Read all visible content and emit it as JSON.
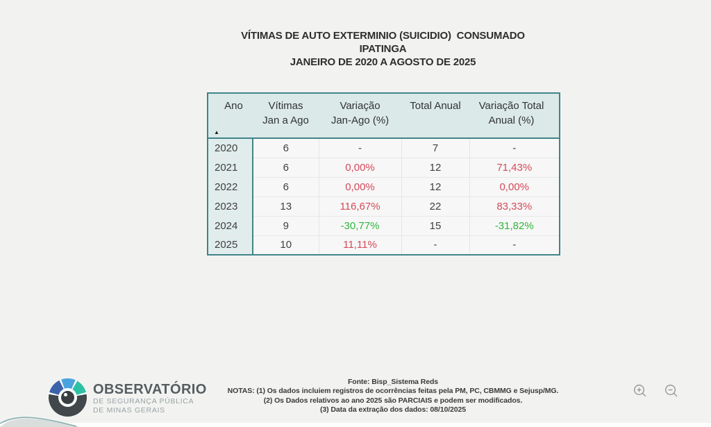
{
  "title": {
    "line1": "VÍTIMAS DE AUTO EXTERMINIO (SUICIDIO)  CONSUMADO",
    "line2": "IPATINGA",
    "line3": "JANEIRO DE 2020 A AGOSTO DE 2025"
  },
  "table": {
    "sort_indicator": "▲",
    "columns": [
      {
        "id": "ano",
        "line1": "Ano",
        "line2": ""
      },
      {
        "id": "vitimas-jan-ago",
        "line1": "Vítimas",
        "line2": "Jan a Ago"
      },
      {
        "id": "variacao-jan-ago",
        "line1": "Variação",
        "line2": "Jan-Ago (%)"
      },
      {
        "id": "total-anual",
        "line1": "Total Anual",
        "line2": ""
      },
      {
        "id": "variacao-total-anual",
        "line1": "Variação Total",
        "line2": "Anual (%)"
      }
    ],
    "rows": [
      {
        "cells": [
          {
            "text": "2020"
          },
          {
            "text": "6"
          },
          {
            "text": "-"
          },
          {
            "text": "7"
          },
          {
            "text": "-"
          }
        ]
      },
      {
        "cells": [
          {
            "text": "2021"
          },
          {
            "text": "6"
          },
          {
            "text": "0,00%",
            "color": "#d5495b"
          },
          {
            "text": "12"
          },
          {
            "text": "71,43%",
            "color": "#d5495b"
          }
        ]
      },
      {
        "cells": [
          {
            "text": "2022"
          },
          {
            "text": "6"
          },
          {
            "text": "0,00%",
            "color": "#d5495b"
          },
          {
            "text": "12"
          },
          {
            "text": "0,00%",
            "color": "#d5495b"
          }
        ]
      },
      {
        "cells": [
          {
            "text": "2023"
          },
          {
            "text": "13"
          },
          {
            "text": "116,67%",
            "color": "#d5495b"
          },
          {
            "text": "22"
          },
          {
            "text": "83,33%",
            "color": "#d5495b"
          }
        ]
      },
      {
        "cells": [
          {
            "text": "2024"
          },
          {
            "text": "9"
          },
          {
            "text": "-30,77%",
            "color": "#33b53e"
          },
          {
            "text": "15"
          },
          {
            "text": "-31,82%",
            "color": "#33b53e"
          }
        ]
      },
      {
        "cells": [
          {
            "text": "2025"
          },
          {
            "text": "10"
          },
          {
            "text": "11,11%",
            "color": "#d5495b"
          },
          {
            "text": "-"
          },
          {
            "text": "-"
          }
        ]
      }
    ]
  },
  "logo": {
    "org_name": "OBSERVATÓRIO",
    "org_sub1": "DE SEGURANÇA PÚBLICA",
    "org_sub2": "DE MINAS GERAIS",
    "colors": {
      "ring_gray": "#41474a",
      "ring_blue_dark": "#3c62ab",
      "ring_blue_light": "#4aa3de",
      "ring_teal": "#2ec0a6"
    }
  },
  "footer": {
    "fonte": "Fonte: Bisp_Sistema Reds",
    "nota1": "NOTAS: (1) Os dados incluiem registros de ocorrências feitas pela PM, PC, CBMMG e Sejusp/MG.",
    "nota2": "(2) Os Dados relativos ao ano 2025 são PARCIAIS e podem ser modificados.",
    "nota3": "(3) Data da extração dos dados: 08/10/2025"
  },
  "palette": {
    "table_border": "#40848a",
    "header_bg": "#dbe9e9",
    "ano_column_bg": "#e1edec",
    "row_bg": "#f6f7f6",
    "negative_variation_red": "#d5495b",
    "positive_variation_green": "#33b53e",
    "background": "#f2f3f1"
  }
}
